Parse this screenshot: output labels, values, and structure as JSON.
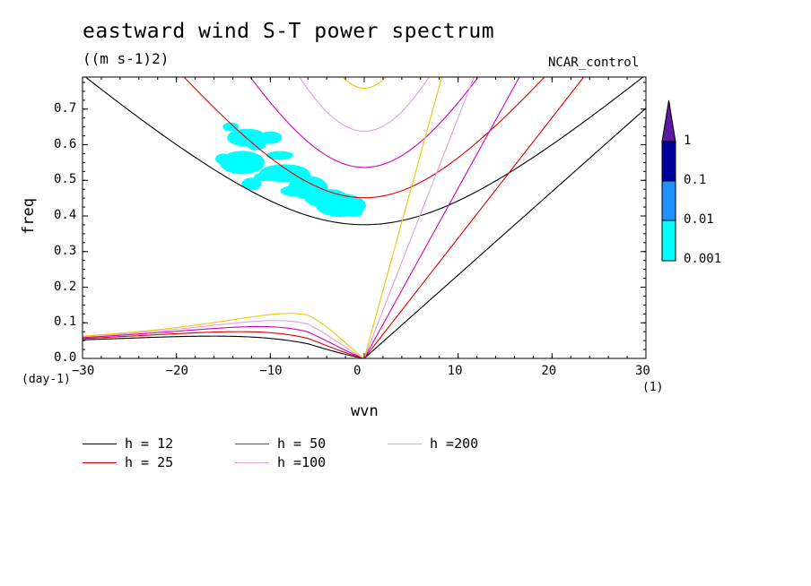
{
  "header": {
    "title": "eastward wind S-T power spectrum",
    "units": "((m s-1)2)",
    "run_name": "NCAR_control"
  },
  "chart_data": {
    "type": "contour",
    "title": "eastward wind S-T power spectrum",
    "subtitle": "((m s-1)2)",
    "xlabel": "wvn",
    "x_unit": "(1)",
    "ylabel": "freq",
    "y_unit": "(day-1)",
    "xlim": [
      -30,
      30
    ],
    "ylim": [
      0,
      0.79
    ],
    "x_ticks": [
      -30,
      -20,
      -10,
      0,
      10,
      20,
      30
    ],
    "x_tick_labels": [
      "−30",
      "−20",
      "−10",
      "0",
      "10",
      "20",
      "30"
    ],
    "y_ticks": [
      0.0,
      0.1,
      0.2,
      0.3,
      0.4,
      0.5,
      0.6,
      0.7
    ],
    "y_tick_labels": [
      "0.0",
      "0.1",
      "0.2",
      "0.3",
      "0.4",
      "0.5",
      "0.6",
      "0.7"
    ],
    "dispersion_curves": [
      {
        "label": "h = 12",
        "h": 12,
        "color": "#000000"
      },
      {
        "label": "h = 25",
        "h": 25,
        "color": "#e00000"
      },
      {
        "label": "h = 50",
        "h": 50,
        "color": "#d000c0"
      },
      {
        "label": "h =100",
        "h": 100,
        "color": "#dda0dd"
      },
      {
        "label": "h =200",
        "h": 200,
        "color": "#f0c800"
      }
    ],
    "colorbar": {
      "levels": [
        "0.001",
        "0.01",
        "0.1",
        "1"
      ],
      "colors": [
        "#00ffff",
        "#1e90ff",
        "#0040d0",
        "#0000a0",
        "#5a1aa0"
      ]
    },
    "shaded_region": {
      "level": "0.001-0.01",
      "color": "#00ffff",
      "approx_blobs": [
        {
          "wvn": -12.5,
          "freq": 0.62
        },
        {
          "wvn": -13.0,
          "freq": 0.55
        },
        {
          "wvn": -8.5,
          "freq": 0.52
        },
        {
          "wvn": -6.0,
          "freq": 0.48
        },
        {
          "wvn": -4.0,
          "freq": 0.45
        },
        {
          "wvn": -2.5,
          "freq": 0.43
        }
      ]
    }
  },
  "legend_entries": [
    {
      "label": "h = 12",
      "color": "#000000"
    },
    {
      "label": "h = 25",
      "color": "#e00000"
    },
    {
      "label": "h = 50",
      "color": "#d000c0"
    },
    {
      "label": "h =100",
      "color": "#dda0dd"
    },
    {
      "label": "h =200",
      "color": "#f0c800"
    }
  ]
}
